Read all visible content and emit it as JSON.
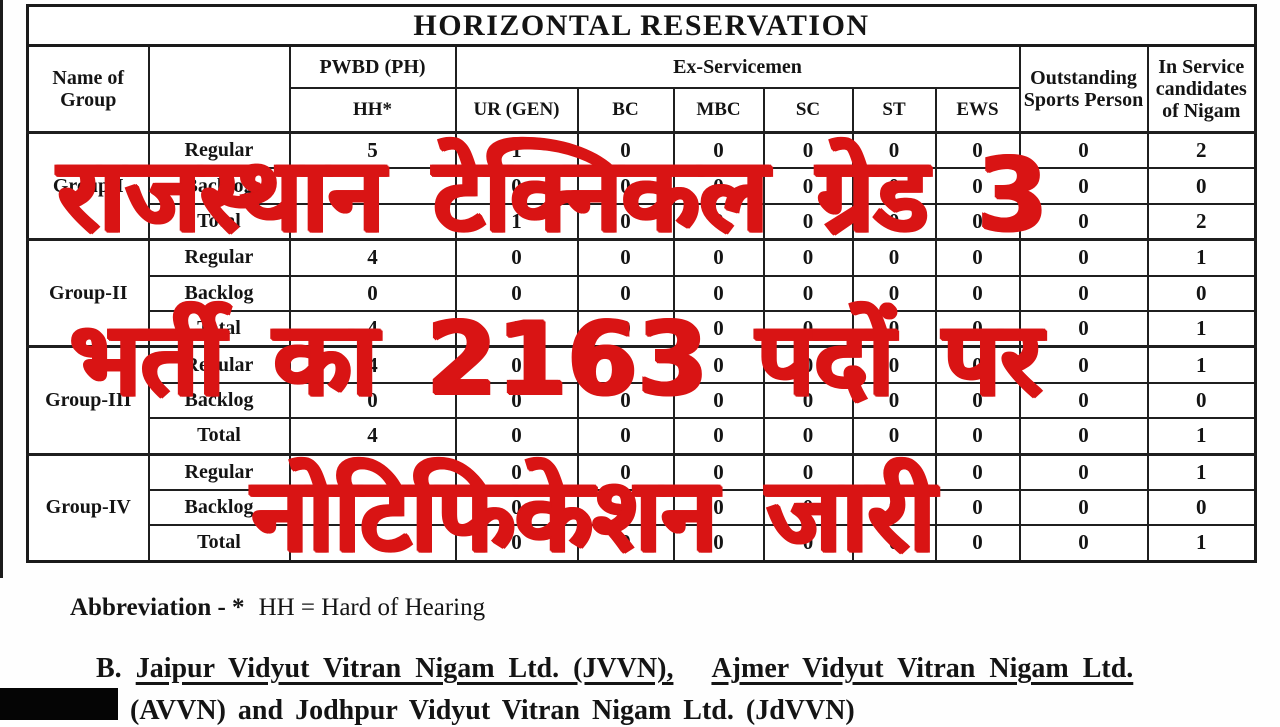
{
  "title": "HORIZONTAL RESERVATION",
  "colors": {
    "overlay_red": "#d91414",
    "table_border": "#1f1f1f"
  },
  "header": {
    "name_of_group": "Name of Group",
    "pwbd": "PWBD (PH)",
    "hh": "HH*",
    "ex_servicemen": "Ex-Servicemen",
    "subcols": [
      "UR (GEN)",
      "BC",
      "MBC",
      "SC",
      "ST",
      "EWS"
    ],
    "outstanding": "Outstanding Sports Person",
    "in_service": "In Service candidates of Nigam"
  },
  "groups": [
    {
      "name": "Group-I",
      "rows": [
        {
          "label": "Regular",
          "values": [
            "5",
            "1",
            "0",
            "0",
            "0",
            "0",
            "0",
            "0",
            "2"
          ]
        },
        {
          "label": "Backlog",
          "values": [
            "0",
            "0",
            "0",
            "0",
            "0",
            "0",
            "0",
            "0",
            "0"
          ]
        },
        {
          "label": "Total",
          "values": [
            "5",
            "1",
            "0",
            "0",
            "0",
            "0",
            "0",
            "0",
            "2"
          ]
        }
      ]
    },
    {
      "name": "Group-II",
      "rows": [
        {
          "label": "Regular",
          "values": [
            "4",
            "0",
            "0",
            "0",
            "0",
            "0",
            "0",
            "0",
            "1"
          ]
        },
        {
          "label": "Backlog",
          "values": [
            "0",
            "0",
            "0",
            "0",
            "0",
            "0",
            "0",
            "0",
            "0"
          ]
        },
        {
          "label": "Total",
          "values": [
            "4",
            "0",
            "0",
            "0",
            "0",
            "0",
            "0",
            "0",
            "1"
          ]
        }
      ]
    },
    {
      "name": "Group-III",
      "rows": [
        {
          "label": "Regular",
          "values": [
            "4",
            "0",
            "0",
            "0",
            "0",
            "0",
            "0",
            "0",
            "1"
          ]
        },
        {
          "label": "Backlog",
          "values": [
            "0",
            "0",
            "0",
            "0",
            "0",
            "0",
            "0",
            "0",
            "0"
          ]
        },
        {
          "label": "Total",
          "values": [
            "4",
            "0",
            "0",
            "0",
            "0",
            "0",
            "0",
            "0",
            "1"
          ]
        }
      ]
    },
    {
      "name": "Group-IV",
      "rows": [
        {
          "label": "Regular",
          "values": [
            "",
            "0",
            "0",
            "0",
            "0",
            "0",
            "0",
            "0",
            "1"
          ]
        },
        {
          "label": "Backlog",
          "values": [
            "",
            "0",
            "0",
            "0",
            "0",
            "0",
            "0",
            "0",
            "0"
          ]
        },
        {
          "label": "Total",
          "values": [
            "",
            "0",
            "0",
            "0",
            "0",
            "0",
            "0",
            "0",
            "1"
          ]
        }
      ]
    }
  ],
  "overlay": {
    "lines": [
      "राजस्थान टेक्निकल ग्रेड 3",
      "भर्ती का 2163 पदों पर",
      "नोटिफिकेशन जारी"
    ]
  },
  "footer": {
    "abbreviation_bold": "Abbreviation - *",
    "abbreviation_rest": "HH = Hard of Hearing",
    "note_label": "B.",
    "note_part1": "Jaipur Vidyut Vitran Nigam Ltd. (JVVN),",
    "note_part2": "Ajmer Vidyut Vitran Nigam Ltd.",
    "note_line2": "(AVVN) and  Jodhpur Vidyut Vitran Nigam Ltd. (JdVVN)"
  }
}
